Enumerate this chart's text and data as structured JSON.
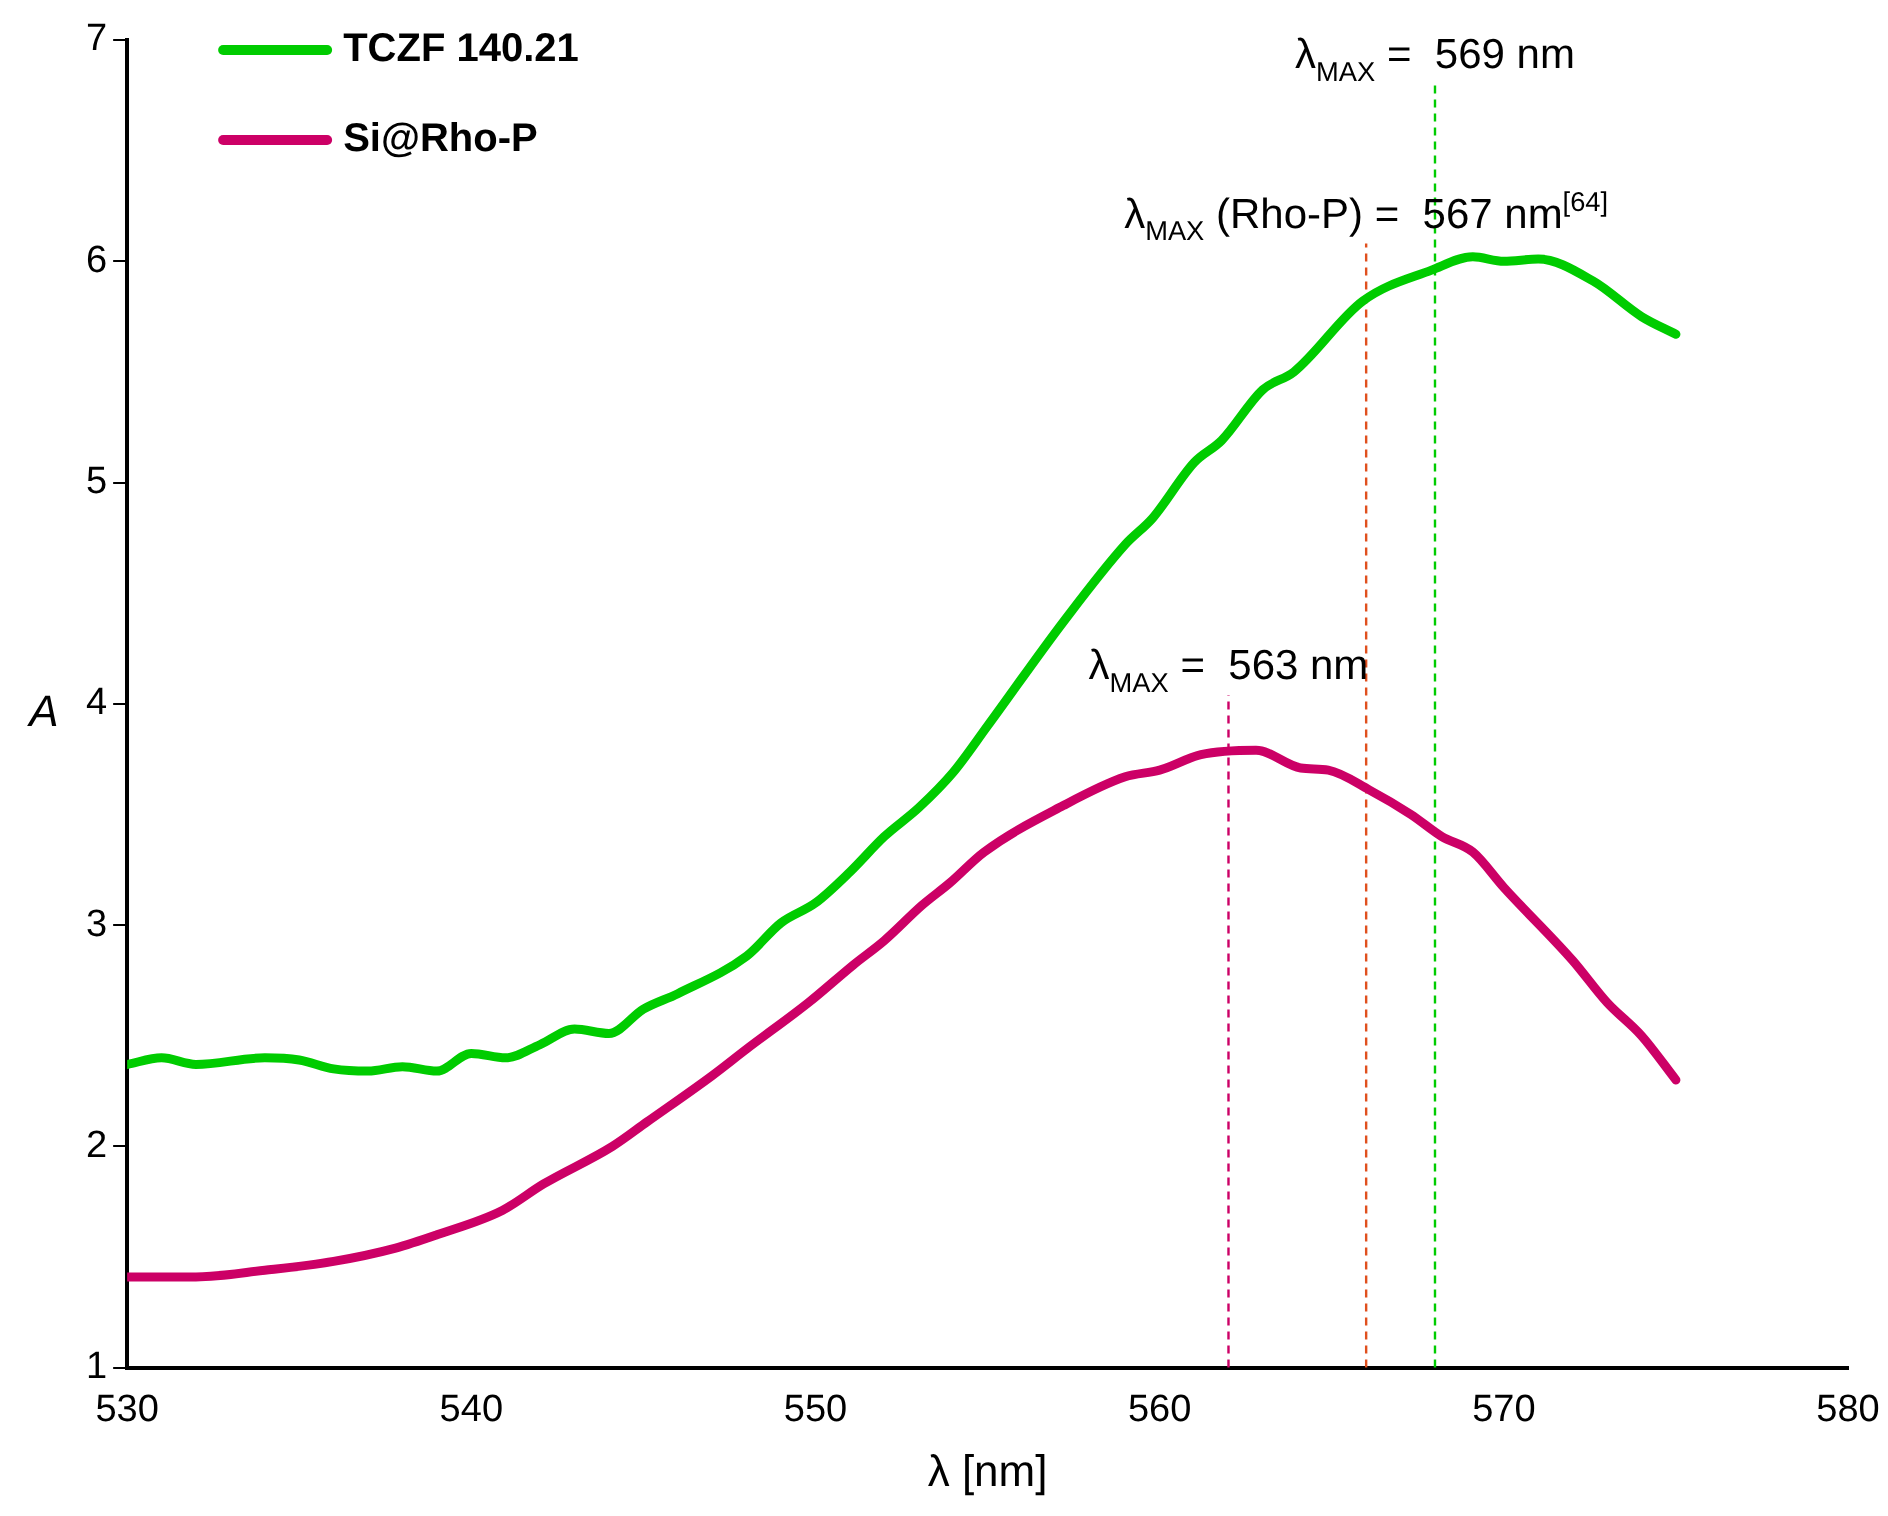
{
  "chart_data": {
    "type": "line",
    "xlabel": "λ [nm]",
    "ylabel": "A",
    "xlim": [
      530,
      580
    ],
    "xticks": [
      530,
      540,
      550,
      560,
      570,
      580
    ],
    "ylim": [
      1,
      7
    ],
    "yticks": [
      1,
      2,
      3,
      4,
      5,
      6,
      7
    ],
    "grid": false,
    "legend": "top left",
    "marker": "none",
    "line_style": "solid",
    "series": [
      {
        "name": "TCZF 140.21",
        "color": "#00cc00",
        "x": [
          530,
          531,
          532,
          534,
          535,
          536,
          537,
          538,
          539,
          540,
          541,
          542,
          543,
          544,
          545,
          546,
          548,
          549,
          550,
          551,
          552,
          553,
          554,
          555,
          557.2,
          559,
          559.8,
          561,
          561.8,
          563,
          563.9,
          565.9,
          567.9,
          569.1,
          570,
          571,
          572.6,
          574,
          575
        ],
        "values": [
          2.37,
          2.4,
          2.37,
          2.4,
          2.39,
          2.35,
          2.34,
          2.36,
          2.34,
          2.42,
          2.4,
          2.46,
          2.53,
          2.51,
          2.62,
          2.69,
          2.86,
          3.01,
          3.1,
          3.24,
          3.4,
          3.53,
          3.69,
          3.9,
          4.37,
          4.72,
          4.84,
          5.09,
          5.19,
          5.42,
          5.5,
          5.82,
          5.96,
          6.02,
          6.0,
          6.01,
          5.91,
          5.75,
          5.67
        ]
      },
      {
        "name": "Si@Rho-P",
        "color": "#cc0066",
        "x": [
          530,
          532,
          534,
          536,
          537.8,
          539,
          540.9,
          542.1,
          544.1,
          545.1,
          547,
          548,
          549.8,
          551.1,
          552,
          553.1,
          553.9,
          554.9,
          557.2,
          559,
          560,
          561.2,
          562.8,
          564.1,
          564.9,
          566.1,
          567.3,
          568.2,
          569.1,
          570,
          572,
          573,
          574,
          575
        ],
        "values": [
          1.41,
          1.41,
          1.44,
          1.48,
          1.54,
          1.6,
          1.71,
          1.83,
          2.0,
          2.11,
          2.32,
          2.44,
          2.65,
          2.82,
          2.93,
          3.09,
          3.19,
          3.33,
          3.54,
          3.67,
          3.7,
          3.77,
          3.79,
          3.71,
          3.7,
          3.61,
          3.5,
          3.4,
          3.33,
          3.17,
          2.84,
          2.65,
          2.5,
          2.3
        ]
      }
    ],
    "ref_lines": [
      {
        "axis": "x",
        "value": 562,
        "color": "#cc0066",
        "line_style": "dashed"
      },
      {
        "axis": "x",
        "value": 566,
        "color": "#e0501e",
        "line_style": "dashed"
      },
      {
        "axis": "x",
        "value": 568,
        "color": "#00cc00",
        "line_style": "dashed"
      }
    ],
    "annotations": [
      {
        "text": "λ$_{MAX}$ =  563 nm",
        "x": 562,
        "y": 4.04
      },
      {
        "text": "λ$_{MAX}$ (Rho-P) =  567 nm$^{[64]}$",
        "x": 566,
        "y": 6.08
      },
      {
        "text": "λ$_{MAX}$ =  569 nm",
        "x": 568,
        "y": 6.8
      }
    ]
  }
}
